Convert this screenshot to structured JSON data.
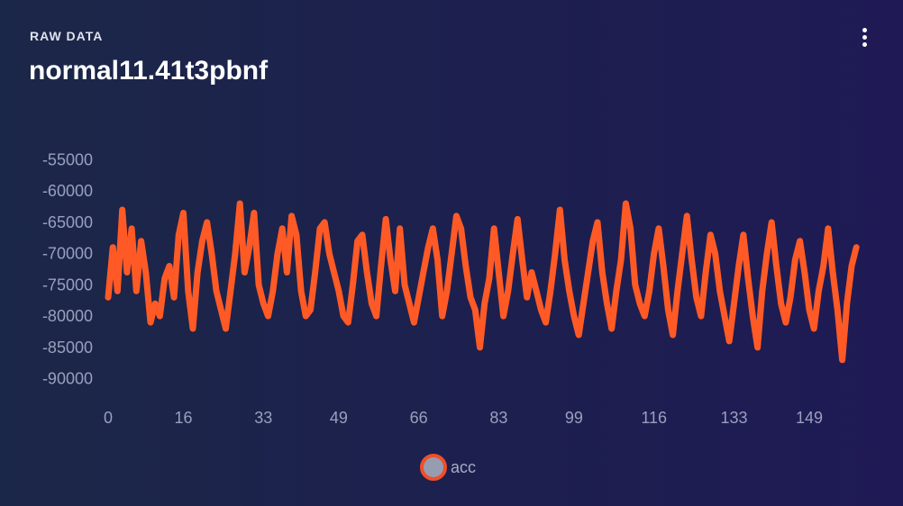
{
  "header": {
    "kicker": "RAW DATA",
    "title": "normal11.41t3pbnf"
  },
  "icons": {
    "menu": "more-vertical-icon"
  },
  "colors": {
    "series": "#ff5a26",
    "tick_text": "#98a0bd",
    "legend_fill": "#969db0",
    "legend_border": "#f04e2a"
  },
  "chart_data": {
    "type": "line",
    "grid": false,
    "legend_position": "bottom-center",
    "xlim": [
      0,
      158
    ],
    "ylim": [
      -92500,
      -52500
    ],
    "x_ticks": [
      "0",
      "16",
      "33",
      "49",
      "66",
      "83",
      "99",
      "116",
      "133",
      "149"
    ],
    "y_ticks": [
      "-55000",
      "-60000",
      "-65000",
      "-70000",
      "-75000",
      "-80000",
      "-85000",
      "-90000"
    ],
    "series": [
      {
        "name": "acc",
        "color": "#ff5a26",
        "values": [
          -77000,
          -69000,
          -76000,
          -63000,
          -73000,
          -66000,
          -76000,
          -68000,
          -73000,
          -81000,
          -78000,
          -80000,
          -74000,
          -72000,
          -77000,
          -67000,
          -63500,
          -76000,
          -82000,
          -73000,
          -68000,
          -65000,
          -70000,
          -76000,
          -79000,
          -82000,
          -76000,
          -70000,
          -62000,
          -73000,
          -69000,
          -63500,
          -75000,
          -78000,
          -80000,
          -76000,
          -70000,
          -66000,
          -73000,
          -64000,
          -67000,
          -76000,
          -80000,
          -79000,
          -73000,
          -66000,
          -65000,
          -70000,
          -73000,
          -76000,
          -80000,
          -81000,
          -75000,
          -68000,
          -67000,
          -73000,
          -78000,
          -80000,
          -72000,
          -64500,
          -71000,
          -76000,
          -66000,
          -75000,
          -78000,
          -81000,
          -77000,
          -73000,
          -69000,
          -66000,
          -71000,
          -80000,
          -76000,
          -70000,
          -64000,
          -66000,
          -72000,
          -77000,
          -79000,
          -85000,
          -78000,
          -74000,
          -66000,
          -73000,
          -80000,
          -76000,
          -70000,
          -64500,
          -71000,
          -77000,
          -73000,
          -76000,
          -79000,
          -81000,
          -76000,
          -70000,
          -63000,
          -71000,
          -76000,
          -80000,
          -83000,
          -78000,
          -73000,
          -68000,
          -65000,
          -73000,
          -78000,
          -82000,
          -76000,
          -71000,
          -62000,
          -66000,
          -75000,
          -78000,
          -80000,
          -76000,
          -70000,
          -66000,
          -72000,
          -79000,
          -83000,
          -76000,
          -70000,
          -64000,
          -71000,
          -77000,
          -80000,
          -73000,
          -67000,
          -70000,
          -76000,
          -80000,
          -84000,
          -78000,
          -72000,
          -67000,
          -74000,
          -80000,
          -85000,
          -76000,
          -70000,
          -65000,
          -72000,
          -78000,
          -81000,
          -77000,
          -71000,
          -68000,
          -73000,
          -79000,
          -82000,
          -76000,
          -72000,
          -66000,
          -73000,
          -79000,
          -87000,
          -78000,
          -72000,
          -69000
        ]
      }
    ]
  },
  "legend": {
    "label": "acc"
  }
}
